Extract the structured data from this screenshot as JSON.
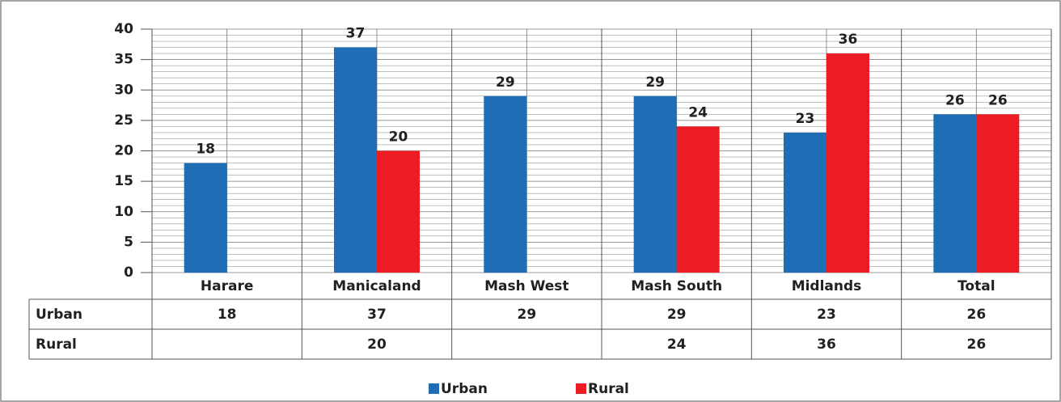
{
  "chart_data": {
    "type": "bar",
    "categories": [
      "Harare",
      "Manicaland",
      "Mash West",
      "Mash South",
      "Midlands",
      "Total"
    ],
    "series": [
      {
        "name": "Urban",
        "color": "#1f6db5",
        "values": [
          18,
          37,
          29,
          29,
          23,
          26
        ]
      },
      {
        "name": "Rural",
        "color": "#ed1c24",
        "values": [
          null,
          20,
          null,
          24,
          36,
          26
        ]
      }
    ],
    "ylim": [
      0,
      40
    ],
    "yticks": [
      0,
      5,
      10,
      15,
      20,
      25,
      30,
      35,
      40
    ],
    "grid": true,
    "data_table": true
  }
}
